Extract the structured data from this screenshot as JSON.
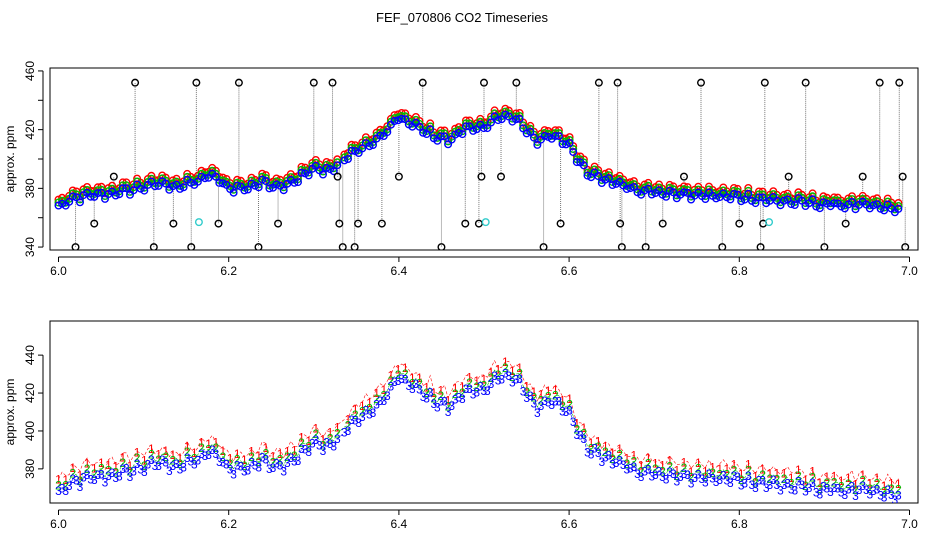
{
  "title": "FEF_070806  CO2 Timeseries",
  "colors": {
    "1": "#ff0000",
    "2": "#00bb00",
    "3": "#0000ff",
    "dropdown": "#000000",
    "cyan": "#33cccc",
    "gray": "#777777"
  },
  "chart_data": [
    {
      "type": "scatter",
      "panel": "top",
      "xlabel": "",
      "ylabel": "approx. ppm",
      "xlim": [
        5.99,
        7.01
      ],
      "ylim": [
        338,
        462
      ],
      "xticks": [
        6.0,
        6.2,
        6.4,
        6.6,
        6.8,
        7.0
      ],
      "xtick_labels": [
        "6.0",
        "6.2",
        "6.4",
        "6.6",
        "6.8",
        "7.0"
      ],
      "yticks": [
        340,
        360,
        380,
        400,
        420,
        440,
        460
      ],
      "ytick_labels": [
        "340",
        "",
        "380",
        "",
        "420",
        "",
        "460"
      ],
      "marker": "circle",
      "series": [
        {
          "name": "1",
          "color": "#ff0000",
          "offset": 4
        },
        {
          "name": "2",
          "color": "#00bb00",
          "offset": 2
        },
        {
          "name": "3",
          "color": "#0000ff",
          "offset": 0
        }
      ],
      "base_curve": [
        [
          6.0,
          367
        ],
        [
          6.02,
          373
        ],
        [
          6.04,
          375
        ],
        [
          6.06,
          376
        ],
        [
          6.08,
          378
        ],
        [
          6.1,
          381
        ],
        [
          6.12,
          383
        ],
        [
          6.14,
          381
        ],
        [
          6.16,
          384
        ],
        [
          6.18,
          389
        ],
        [
          6.2,
          380
        ],
        [
          6.22,
          380
        ],
        [
          6.24,
          384
        ],
        [
          6.26,
          381
        ],
        [
          6.28,
          386
        ],
        [
          6.3,
          393
        ],
        [
          6.32,
          392
        ],
        [
          6.34,
          402
        ],
        [
          6.36,
          408
        ],
        [
          6.38,
          415
        ],
        [
          6.4,
          428
        ],
        [
          6.42,
          422
        ],
        [
          6.44,
          416
        ],
        [
          6.46,
          412
        ],
        [
          6.48,
          422
        ],
        [
          6.5,
          420
        ],
        [
          6.52,
          430
        ],
        [
          6.54,
          426
        ],
        [
          6.56,
          412
        ],
        [
          6.58,
          416
        ],
        [
          6.6,
          410
        ],
        [
          6.62,
          390
        ],
        [
          6.64,
          386
        ],
        [
          6.66,
          383
        ],
        [
          6.68,
          379
        ],
        [
          6.7,
          377
        ],
        [
          6.75,
          375
        ],
        [
          6.8,
          374
        ],
        [
          6.85,
          371
        ],
        [
          6.9,
          369
        ],
        [
          6.95,
          368
        ],
        [
          6.99,
          365
        ]
      ],
      "dropdown_markers": [
        [
          6.02,
          340
        ],
        [
          6.042,
          356
        ],
        [
          6.065,
          388
        ],
        [
          6.09,
          452
        ],
        [
          6.112,
          340
        ],
        [
          6.135,
          356
        ],
        [
          6.156,
          340
        ],
        [
          6.162,
          452
        ],
        [
          6.188,
          356
        ],
        [
          6.212,
          452
        ],
        [
          6.235,
          340
        ],
        [
          6.258,
          356
        ],
        [
          6.3,
          452
        ],
        [
          6.322,
          452
        ],
        [
          6.328,
          388
        ],
        [
          6.33,
          356
        ],
        [
          6.334,
          340
        ],
        [
          6.348,
          340
        ],
        [
          6.352,
          356
        ],
        [
          6.38,
          356
        ],
        [
          6.4,
          388
        ],
        [
          6.428,
          452
        ],
        [
          6.45,
          340
        ],
        [
          6.478,
          356
        ],
        [
          6.494,
          356
        ],
        [
          6.497,
          388
        ],
        [
          6.5,
          452
        ],
        [
          6.52,
          388
        ],
        [
          6.538,
          452
        ],
        [
          6.57,
          340
        ],
        [
          6.59,
          356
        ],
        [
          6.635,
          452
        ],
        [
          6.657,
          452
        ],
        [
          6.66,
          356
        ],
        [
          6.662,
          340
        ],
        [
          6.69,
          340
        ],
        [
          6.71,
          356
        ],
        [
          6.735,
          388
        ],
        [
          6.755,
          452
        ],
        [
          6.78,
          340
        ],
        [
          6.8,
          356
        ],
        [
          6.825,
          340
        ],
        [
          6.828,
          356
        ],
        [
          6.83,
          452
        ],
        [
          6.858,
          388
        ],
        [
          6.878,
          452
        ],
        [
          6.9,
          340
        ],
        [
          6.925,
          356
        ],
        [
          6.945,
          388
        ],
        [
          6.965,
          452
        ],
        [
          6.988,
          452
        ],
        [
          6.992,
          388
        ],
        [
          6.995,
          340
        ]
      ],
      "cyan_markers": [
        [
          6.165,
          357
        ],
        [
          6.502,
          357
        ],
        [
          6.835,
          357
        ]
      ]
    },
    {
      "type": "scatter",
      "panel": "bottom",
      "xlabel": "",
      "ylabel": "approx. ppm",
      "xlim": [
        5.99,
        7.01
      ],
      "ylim": [
        362,
        458
      ],
      "xticks": [
        6.0,
        6.2,
        6.4,
        6.6,
        6.8,
        7.0
      ],
      "xtick_labels": [
        "6.0",
        "6.2",
        "6.4",
        "6.6",
        "6.8",
        "7.0"
      ],
      "yticks": [
        380,
        400,
        420,
        440
      ],
      "ytick_labels": [
        "380",
        "400",
        "420",
        "440"
      ],
      "marker": "digit",
      "series": [
        {
          "name": "1",
          "label": "1",
          "color": "#ff0000",
          "offset": 6
        },
        {
          "name": "2",
          "label": "2",
          "color": "#00bb00",
          "offset": 3
        },
        {
          "name": "3",
          "label": "3",
          "color": "#0000ff",
          "offset": 0
        }
      ]
    }
  ]
}
